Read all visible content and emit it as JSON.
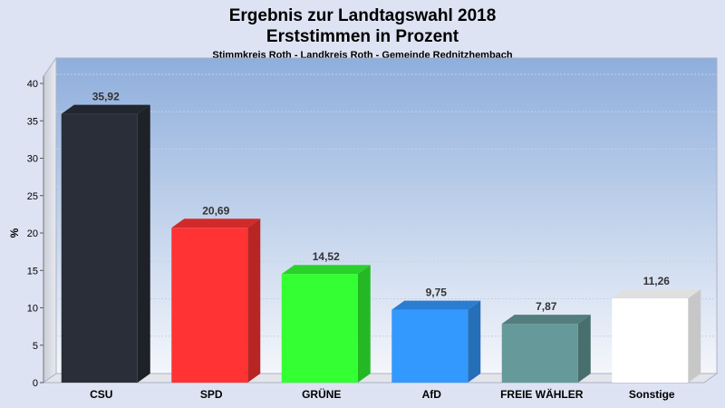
{
  "header": {
    "title_line1": "Ergebnis zur Landtagswahl 2018",
    "title_line2": "Erststimmen in Prozent",
    "subtitle": "Stimmkreis Roth - Landkreis Roth - Gemeinde Rednitzhembach"
  },
  "chart_data": {
    "type": "bar",
    "title": "Ergebnis zur Landtagswahl 2018 Erststimmen in Prozent",
    "subtitle": "Stimmkreis Roth - Landkreis Roth - Gemeinde Rednitzhembach",
    "ylabel": "%",
    "xlabel": "",
    "ylim": [
      0,
      40
    ],
    "yticks": [
      "0",
      "5",
      "10",
      "15",
      "20",
      "25",
      "30",
      "35",
      "40"
    ],
    "grid": true,
    "legend": "none",
    "categories": [
      "CSU",
      "SPD",
      "GRÜNE",
      "AfD",
      "FREIE WÄHLER",
      "Sonstige"
    ],
    "values": [
      35.92,
      20.69,
      14.52,
      9.75,
      7.87,
      11.26
    ],
    "value_labels": [
      "35,92",
      "20,69",
      "14,52",
      "9,75",
      "7,87",
      "11,26"
    ],
    "colors": [
      "#2a2e38",
      "#ff3333",
      "#33ff33",
      "#3399ff",
      "#669999",
      "#ffffff"
    ]
  }
}
